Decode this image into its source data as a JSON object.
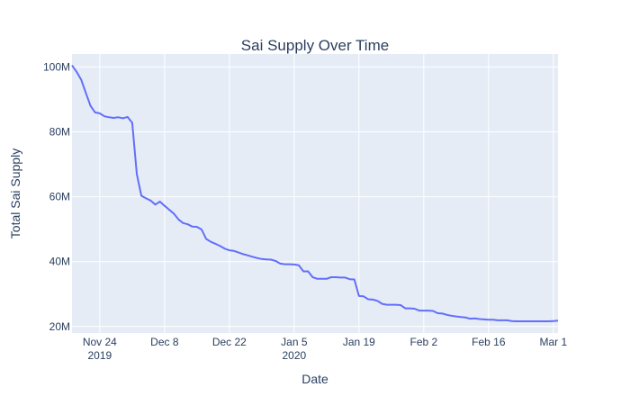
{
  "chart_data": {
    "type": "line",
    "title": "Sai Supply Over Time",
    "xlabel": "Date",
    "ylabel": "Total Sai Supply",
    "xlim": [
      "2019-11-18",
      "2020-03-02"
    ],
    "ylim": [
      18000000,
      104000000
    ],
    "grid": true,
    "legend": "none",
    "line_color": "#636efa",
    "plot_background": "#e5ecf6",
    "x_ticks": [
      {
        "date": "2019-11-24",
        "label": "Nov 24",
        "sublabel": "2019"
      },
      {
        "date": "2019-12-08",
        "label": "Dec 8",
        "sublabel": ""
      },
      {
        "date": "2019-12-22",
        "label": "Dec 22",
        "sublabel": ""
      },
      {
        "date": "2020-01-05",
        "label": "Jan 5",
        "sublabel": "2020"
      },
      {
        "date": "2020-01-19",
        "label": "Jan 19",
        "sublabel": ""
      },
      {
        "date": "2020-02-02",
        "label": "Feb 2",
        "sublabel": ""
      },
      {
        "date": "2020-02-16",
        "label": "Feb 16",
        "sublabel": ""
      },
      {
        "date": "2020-03-01",
        "label": "Mar 1",
        "sublabel": ""
      }
    ],
    "y_ticks": [
      {
        "value": 20000000,
        "label": "20M"
      },
      {
        "value": 40000000,
        "label": "40M"
      },
      {
        "value": 60000000,
        "label": "60M"
      },
      {
        "value": 80000000,
        "label": "80M"
      },
      {
        "value": 100000000,
        "label": "100M"
      }
    ],
    "series": [
      {
        "x": [
          "2019-11-18",
          "2019-11-19",
          "2019-11-20",
          "2019-11-21",
          "2019-11-22",
          "2019-11-23",
          "2019-11-24",
          "2019-11-25",
          "2019-11-26",
          "2019-11-27",
          "2019-11-28",
          "2019-11-29",
          "2019-11-30",
          "2019-12-01",
          "2019-12-02",
          "2019-12-03",
          "2019-12-04",
          "2019-12-05",
          "2019-12-06",
          "2019-12-07",
          "2019-12-08",
          "2019-12-09",
          "2019-12-10",
          "2019-12-11",
          "2019-12-12",
          "2019-12-13",
          "2019-12-14",
          "2019-12-15",
          "2019-12-16",
          "2019-12-17",
          "2019-12-18",
          "2019-12-19",
          "2019-12-20",
          "2019-12-21",
          "2019-12-22",
          "2019-12-23",
          "2019-12-24",
          "2019-12-25",
          "2019-12-26",
          "2019-12-27",
          "2019-12-28",
          "2019-12-29",
          "2019-12-30",
          "2019-12-31",
          "2020-01-01",
          "2020-01-02",
          "2020-01-03",
          "2020-01-04",
          "2020-01-05",
          "2020-01-06",
          "2020-01-07",
          "2020-01-08",
          "2020-01-09",
          "2020-01-10",
          "2020-01-11",
          "2020-01-12",
          "2020-01-13",
          "2020-01-14",
          "2020-01-15",
          "2020-01-16",
          "2020-01-17",
          "2020-01-18",
          "2020-01-19",
          "2020-01-20",
          "2020-01-21",
          "2020-01-22",
          "2020-01-23",
          "2020-01-24",
          "2020-01-25",
          "2020-01-26",
          "2020-01-27",
          "2020-01-28",
          "2020-01-29",
          "2020-01-30",
          "2020-01-31",
          "2020-02-01",
          "2020-02-02",
          "2020-02-03",
          "2020-02-04",
          "2020-02-05",
          "2020-02-06",
          "2020-02-07",
          "2020-02-08",
          "2020-02-09",
          "2020-02-10",
          "2020-02-11",
          "2020-02-12",
          "2020-02-13",
          "2020-02-14",
          "2020-02-15",
          "2020-02-16",
          "2020-02-17",
          "2020-02-18",
          "2020-02-19",
          "2020-02-20",
          "2020-02-21",
          "2020-02-22",
          "2020-02-23",
          "2020-02-24",
          "2020-02-25",
          "2020-02-26",
          "2020-02-27",
          "2020-02-28",
          "2020-02-29",
          "2020-03-01",
          "2020-03-02"
        ],
        "y": [
          100500000,
          98500000,
          96000000,
          92000000,
          88000000,
          86000000,
          85700000,
          84800000,
          84500000,
          84300000,
          84500000,
          84200000,
          84600000,
          82800000,
          67000000,
          60300000,
          59500000,
          58800000,
          57600000,
          58500000,
          57200000,
          56000000,
          54800000,
          53000000,
          51900000,
          51500000,
          50800000,
          50700000,
          49900000,
          47000000,
          46100000,
          45500000,
          44800000,
          44000000,
          43500000,
          43300000,
          42800000,
          42300000,
          41900000,
          41500000,
          41100000,
          40800000,
          40700000,
          40600000,
          40200000,
          39400000,
          39200000,
          39200000,
          39100000,
          38900000,
          37000000,
          37000000,
          35200000,
          34700000,
          34700000,
          34700000,
          35200000,
          35200000,
          35100000,
          35100000,
          34600000,
          34500000,
          29400000,
          29300000,
          28400000,
          28300000,
          27900000,
          27000000,
          26700000,
          26700000,
          26700000,
          26600000,
          25600000,
          25600000,
          25500000,
          24900000,
          24900000,
          24900000,
          24800000,
          24100000,
          24000000,
          23600000,
          23300000,
          23100000,
          22900000,
          22800000,
          22400000,
          22500000,
          22300000,
          22200000,
          22100000,
          22100000,
          21900000,
          21900000,
          21900000,
          21700000,
          21600000,
          21600000,
          21600000,
          21600000,
          21600000,
          21600000,
          21600000,
          21600000,
          21700000,
          21800000
        ]
      }
    ]
  }
}
